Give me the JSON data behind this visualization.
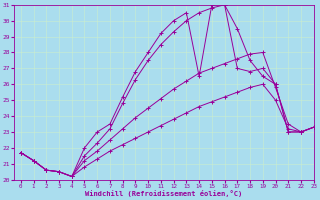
{
  "xlabel": "Windchill (Refroidissement éolien,°C)",
  "xlim": [
    -0.5,
    23
  ],
  "ylim": [
    20,
    31
  ],
  "yticks": [
    20,
    21,
    22,
    23,
    24,
    25,
    26,
    27,
    28,
    29,
    30,
    31
  ],
  "xticks": [
    0,
    1,
    2,
    3,
    4,
    5,
    6,
    7,
    8,
    9,
    10,
    11,
    12,
    13,
    14,
    15,
    16,
    17,
    18,
    19,
    20,
    21,
    22,
    23
  ],
  "line_color": "#990099",
  "bg_color": "#aaddee",
  "grid_color": "#bbddcc",
  "lines": [
    {
      "x": [
        0,
        1,
        2,
        3,
        4,
        5,
        6,
        7,
        8,
        9,
        10,
        11,
        12,
        13,
        14,
        15,
        16,
        17,
        18,
        19,
        20,
        21,
        22,
        23
      ],
      "y": [
        21.7,
        21.2,
        20.6,
        20.5,
        20.2,
        20.8,
        21.3,
        21.8,
        22.2,
        22.6,
        23.0,
        23.4,
        23.8,
        24.2,
        24.6,
        24.9,
        25.2,
        25.5,
        25.8,
        26.0,
        25.0,
        23.2,
        23.0,
        23.3
      ]
    },
    {
      "x": [
        0,
        1,
        2,
        3,
        4,
        5,
        6,
        7,
        8,
        9,
        10,
        11,
        12,
        13,
        14,
        15,
        16,
        17,
        18,
        19,
        20,
        21,
        22,
        23
      ],
      "y": [
        21.7,
        21.2,
        20.6,
        20.5,
        20.2,
        21.2,
        21.8,
        22.5,
        23.2,
        23.9,
        24.5,
        25.1,
        25.7,
        26.2,
        26.7,
        27.0,
        27.3,
        27.6,
        27.9,
        28.0,
        25.8,
        23.5,
        23.0,
        23.3
      ]
    },
    {
      "x": [
        0,
        1,
        2,
        3,
        4,
        5,
        6,
        7,
        8,
        9,
        10,
        11,
        12,
        13,
        14,
        15,
        16,
        17,
        18,
        19,
        20,
        21,
        22,
        23
      ],
      "y": [
        21.7,
        21.2,
        20.6,
        20.5,
        20.2,
        21.5,
        22.3,
        23.2,
        24.8,
        26.3,
        27.5,
        28.5,
        29.3,
        30.0,
        30.5,
        30.8,
        31.0,
        29.5,
        27.5,
        26.5,
        26.0,
        23.0,
        23.0,
        23.3
      ]
    },
    {
      "x": [
        0,
        1,
        2,
        3,
        4,
        5,
        6,
        7,
        8,
        9,
        10,
        11,
        12,
        13,
        14,
        15,
        16,
        17,
        18,
        19,
        20,
        21,
        22,
        23
      ],
      "y": [
        21.7,
        21.2,
        20.6,
        20.5,
        20.2,
        22.0,
        23.0,
        23.5,
        25.2,
        26.8,
        28.0,
        29.2,
        30.0,
        30.5,
        26.5,
        31.0,
        31.0,
        27.0,
        26.8,
        27.0,
        26.0,
        23.0,
        23.0,
        23.3
      ]
    }
  ]
}
